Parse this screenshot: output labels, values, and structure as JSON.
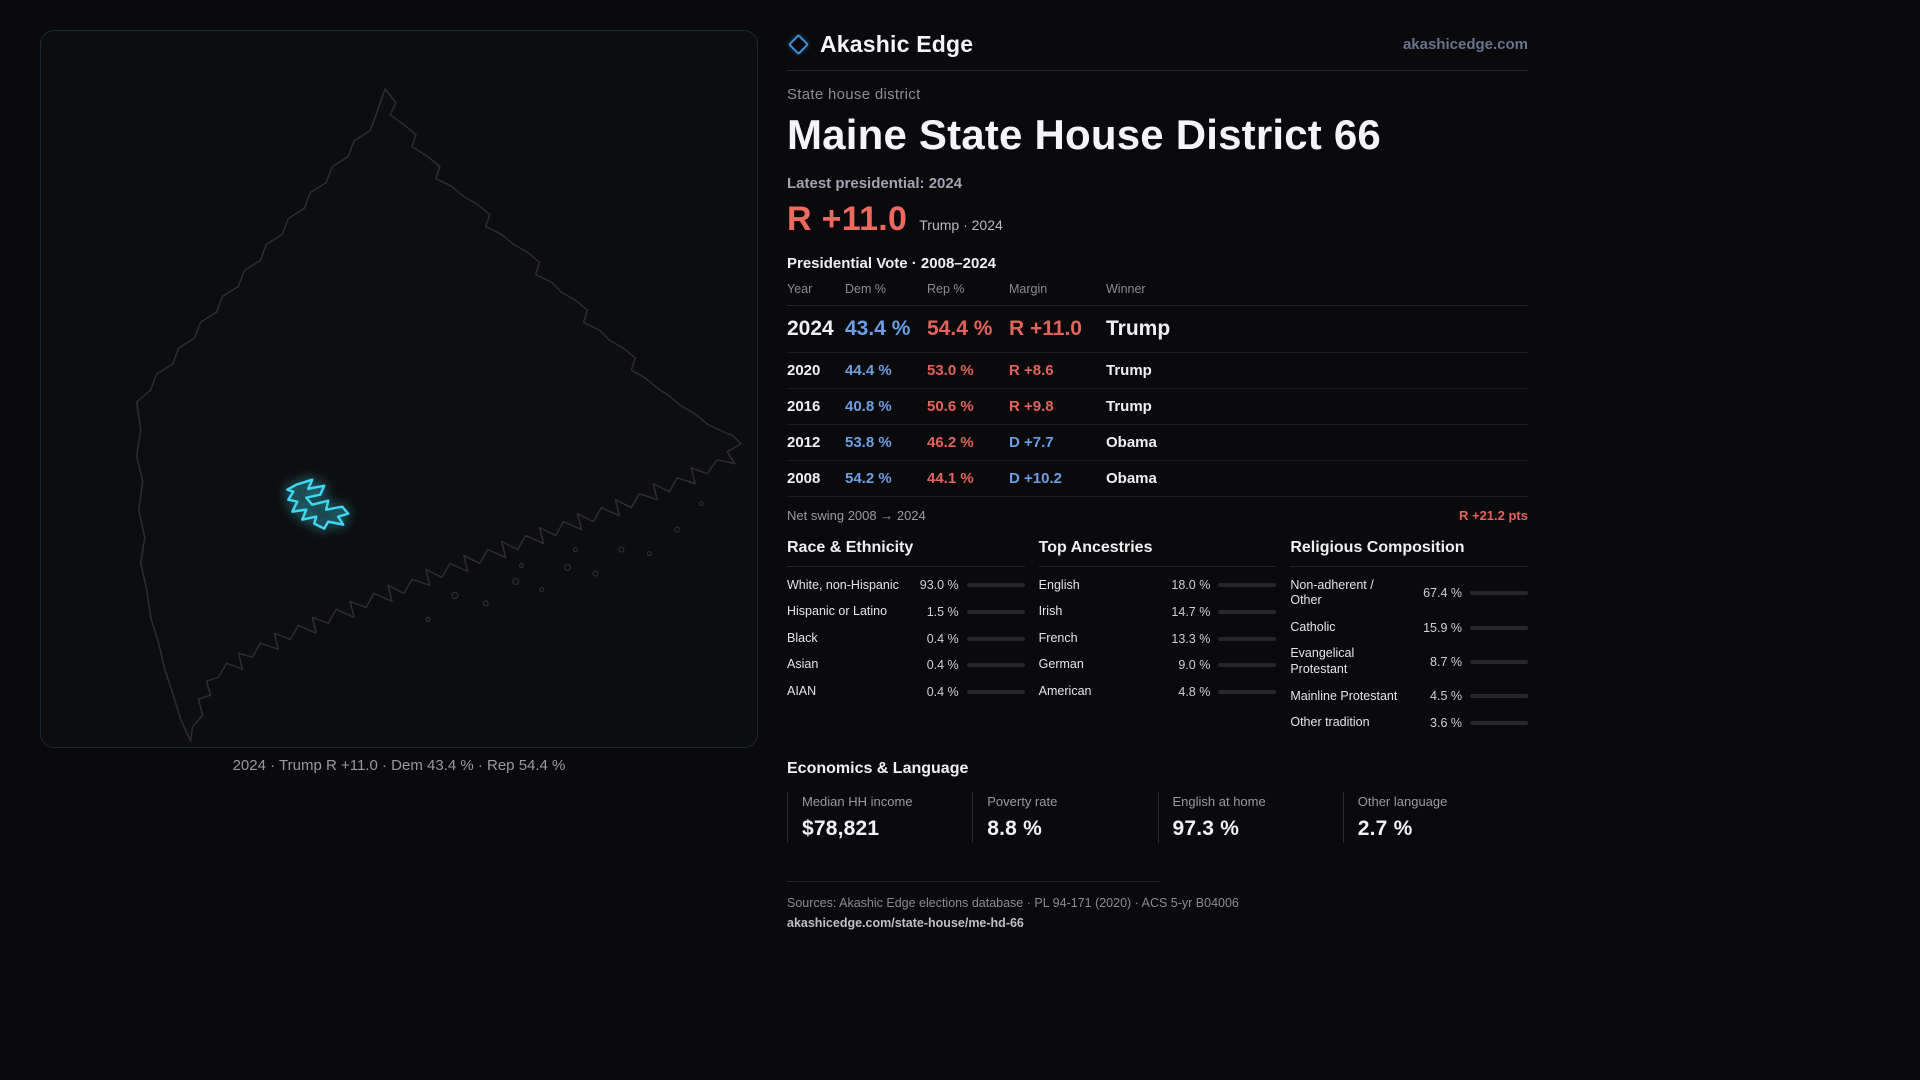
{
  "brand": {
    "name": "Akashic Edge",
    "domain": "akashicedge.com"
  },
  "page": {
    "kicker": "State house district",
    "title": "Maine State House District 66",
    "latest_label": "Latest presidential: 2024",
    "headline": {
      "margin": "R +11.0",
      "context": "Trump · 2024"
    }
  },
  "map": {
    "region_name": "Maine",
    "district_name": "District 66",
    "caption": "2024 · Trump R +11.0 · Dem 43.4 % · Rep 54.4 %"
  },
  "vote_table": {
    "title": "Presidential Vote · 2008–2024",
    "columns": {
      "year": "Year",
      "dem": "Dem %",
      "rep": "Rep %",
      "margin": "Margin",
      "winner": "Winner"
    },
    "rows": [
      {
        "year": "2024",
        "dem": "43.4 %",
        "rep": "54.4 %",
        "margin": "R +11.0",
        "winner": "Trump"
      },
      {
        "year": "2020",
        "dem": "44.4 %",
        "rep": "53.0 %",
        "margin": "R +8.6",
        "winner": "Trump"
      },
      {
        "year": "2016",
        "dem": "40.8 %",
        "rep": "50.6 %",
        "margin": "R +9.8",
        "winner": "Trump"
      },
      {
        "year": "2012",
        "dem": "53.8 %",
        "rep": "46.2 %",
        "margin": "D +7.7",
        "winner": "Obama"
      },
      {
        "year": "2008",
        "dem": "54.2 %",
        "rep": "44.1 %",
        "margin": "D +10.2",
        "winner": "Obama"
      }
    ],
    "net_swing": {
      "label": "Net swing 2008 → 2024",
      "value": "R +21.2 pts"
    }
  },
  "demographics": {
    "race": {
      "title": "Race & Ethnicity",
      "items": [
        {
          "label": "White, non-Hispanic",
          "value": "93.0 %",
          "pct": 93.0,
          "color": "#aab3cf"
        },
        {
          "label": "Hispanic or Latino",
          "value": "1.5 %",
          "pct": 1.5,
          "color": "#aab3cf"
        },
        {
          "label": "Black",
          "value": "0.4 %",
          "pct": 0.4,
          "color": "#aab3cf"
        },
        {
          "label": "Asian",
          "value": "0.4 %",
          "pct": 0.4,
          "color": "#aab3cf"
        },
        {
          "label": "AIAN",
          "value": "0.4 %",
          "pct": 0.4,
          "color": "#aab3cf"
        }
      ]
    },
    "ancestries": {
      "title": "Top Ancestries",
      "items": [
        {
          "label": "English",
          "value": "18.0 %",
          "pct": 18.0,
          "color": "#aab3cf"
        },
        {
          "label": "Irish",
          "value": "14.7 %",
          "pct": 14.7,
          "color": "#aab3cf"
        },
        {
          "label": "French",
          "value": "13.3 %",
          "pct": 13.3,
          "color": "#aab3cf"
        },
        {
          "label": "German",
          "value": "9.0 %",
          "pct": 9.0,
          "color": "#aab3cf"
        },
        {
          "label": "American",
          "value": "4.8 %",
          "pct": 4.8,
          "color": "#aab3cf"
        }
      ]
    },
    "religion": {
      "title": "Religious Composition",
      "items": [
        {
          "label": "Non-adherent / Other",
          "value": "67.4 %",
          "pct": 67.4,
          "color": "#9aa0ab"
        },
        {
          "label": "Catholic",
          "value": "15.9 %",
          "pct": 15.9,
          "color": "#e0b23e"
        },
        {
          "label": "Evangelical Protestant",
          "value": "8.7 %",
          "pct": 8.7,
          "color": "#e2635c"
        },
        {
          "label": "Mainline Protestant",
          "value": "4.5 %",
          "pct": 4.5,
          "color": "#5b8dd9"
        },
        {
          "label": "Other tradition",
          "value": "3.6 %",
          "pct": 3.6,
          "color": "#9aa0ab"
        }
      ]
    }
  },
  "economics": {
    "title": "Economics & Language",
    "stats": [
      {
        "label": "Median HH income",
        "value": "$78,821"
      },
      {
        "label": "Poverty rate",
        "value": "8.8 %"
      },
      {
        "label": "English at home",
        "value": "97.3 %"
      },
      {
        "label": "Other language",
        "value": "2.7 %"
      }
    ]
  },
  "footer": {
    "sources": "Sources: Akashic Edge elections database · PL 94-171 (2020) · ACS 5-yr B04006",
    "permalink": "akashicedge.com/state-house/me-hd-66"
  },
  "colors": {
    "accent_cyan": "#3fd6ef",
    "dem_blue": "#6b9fe4",
    "rep_red": "#e2635c",
    "background": "#0a0a0c"
  }
}
